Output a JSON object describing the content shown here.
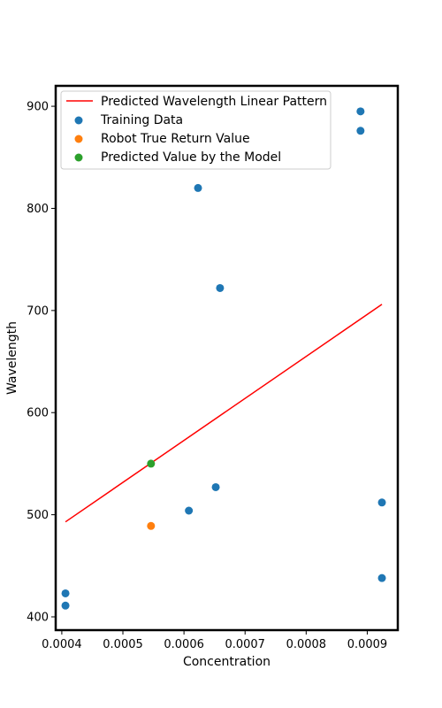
{
  "chart_data": {
    "type": "scatter",
    "xlabel": "Concentration",
    "ylabel": "Wavelength",
    "xlim": [
      0.00039,
      0.00095
    ],
    "ylim": [
      387,
      920
    ],
    "x_ticks": [
      "0.0004",
      "0.0005",
      "0.0006",
      "0.0007",
      "0.0008",
      "0.0009"
    ],
    "x_tick_values": [
      0.0004,
      0.0005,
      0.0006,
      0.0007,
      0.0008,
      0.0009
    ],
    "y_ticks": [
      "400",
      "500",
      "600",
      "700",
      "800",
      "900"
    ],
    "y_tick_values": [
      400,
      500,
      600,
      700,
      800,
      900
    ],
    "legend_position": "upper-left",
    "series": [
      {
        "name": "Predicted Wavelength Linear Pattern",
        "kind": "line",
        "color": "#ff0000",
        "x": [
          0.000406,
          0.000924
        ],
        "y": [
          493,
          706
        ]
      },
      {
        "name": "Training Data",
        "kind": "scatter",
        "color": "#1f77b4",
        "x": [
          0.000889,
          0.000889,
          0.000623,
          0.000659,
          0.000652,
          0.000608,
          0.000924,
          0.000924,
          0.000406,
          0.000406
        ],
        "y": [
          895,
          876,
          820,
          722,
          527,
          504,
          512,
          438,
          423,
          411
        ]
      },
      {
        "name": "Robot True Return Value",
        "kind": "scatter",
        "color": "#ff7f0e",
        "x": [
          0.000546
        ],
        "y": [
          489
        ]
      },
      {
        "name": "Predicted Value by the Model",
        "kind": "scatter",
        "color": "#2ca02c",
        "x": [
          0.000546
        ],
        "y": [
          550
        ]
      }
    ]
  }
}
